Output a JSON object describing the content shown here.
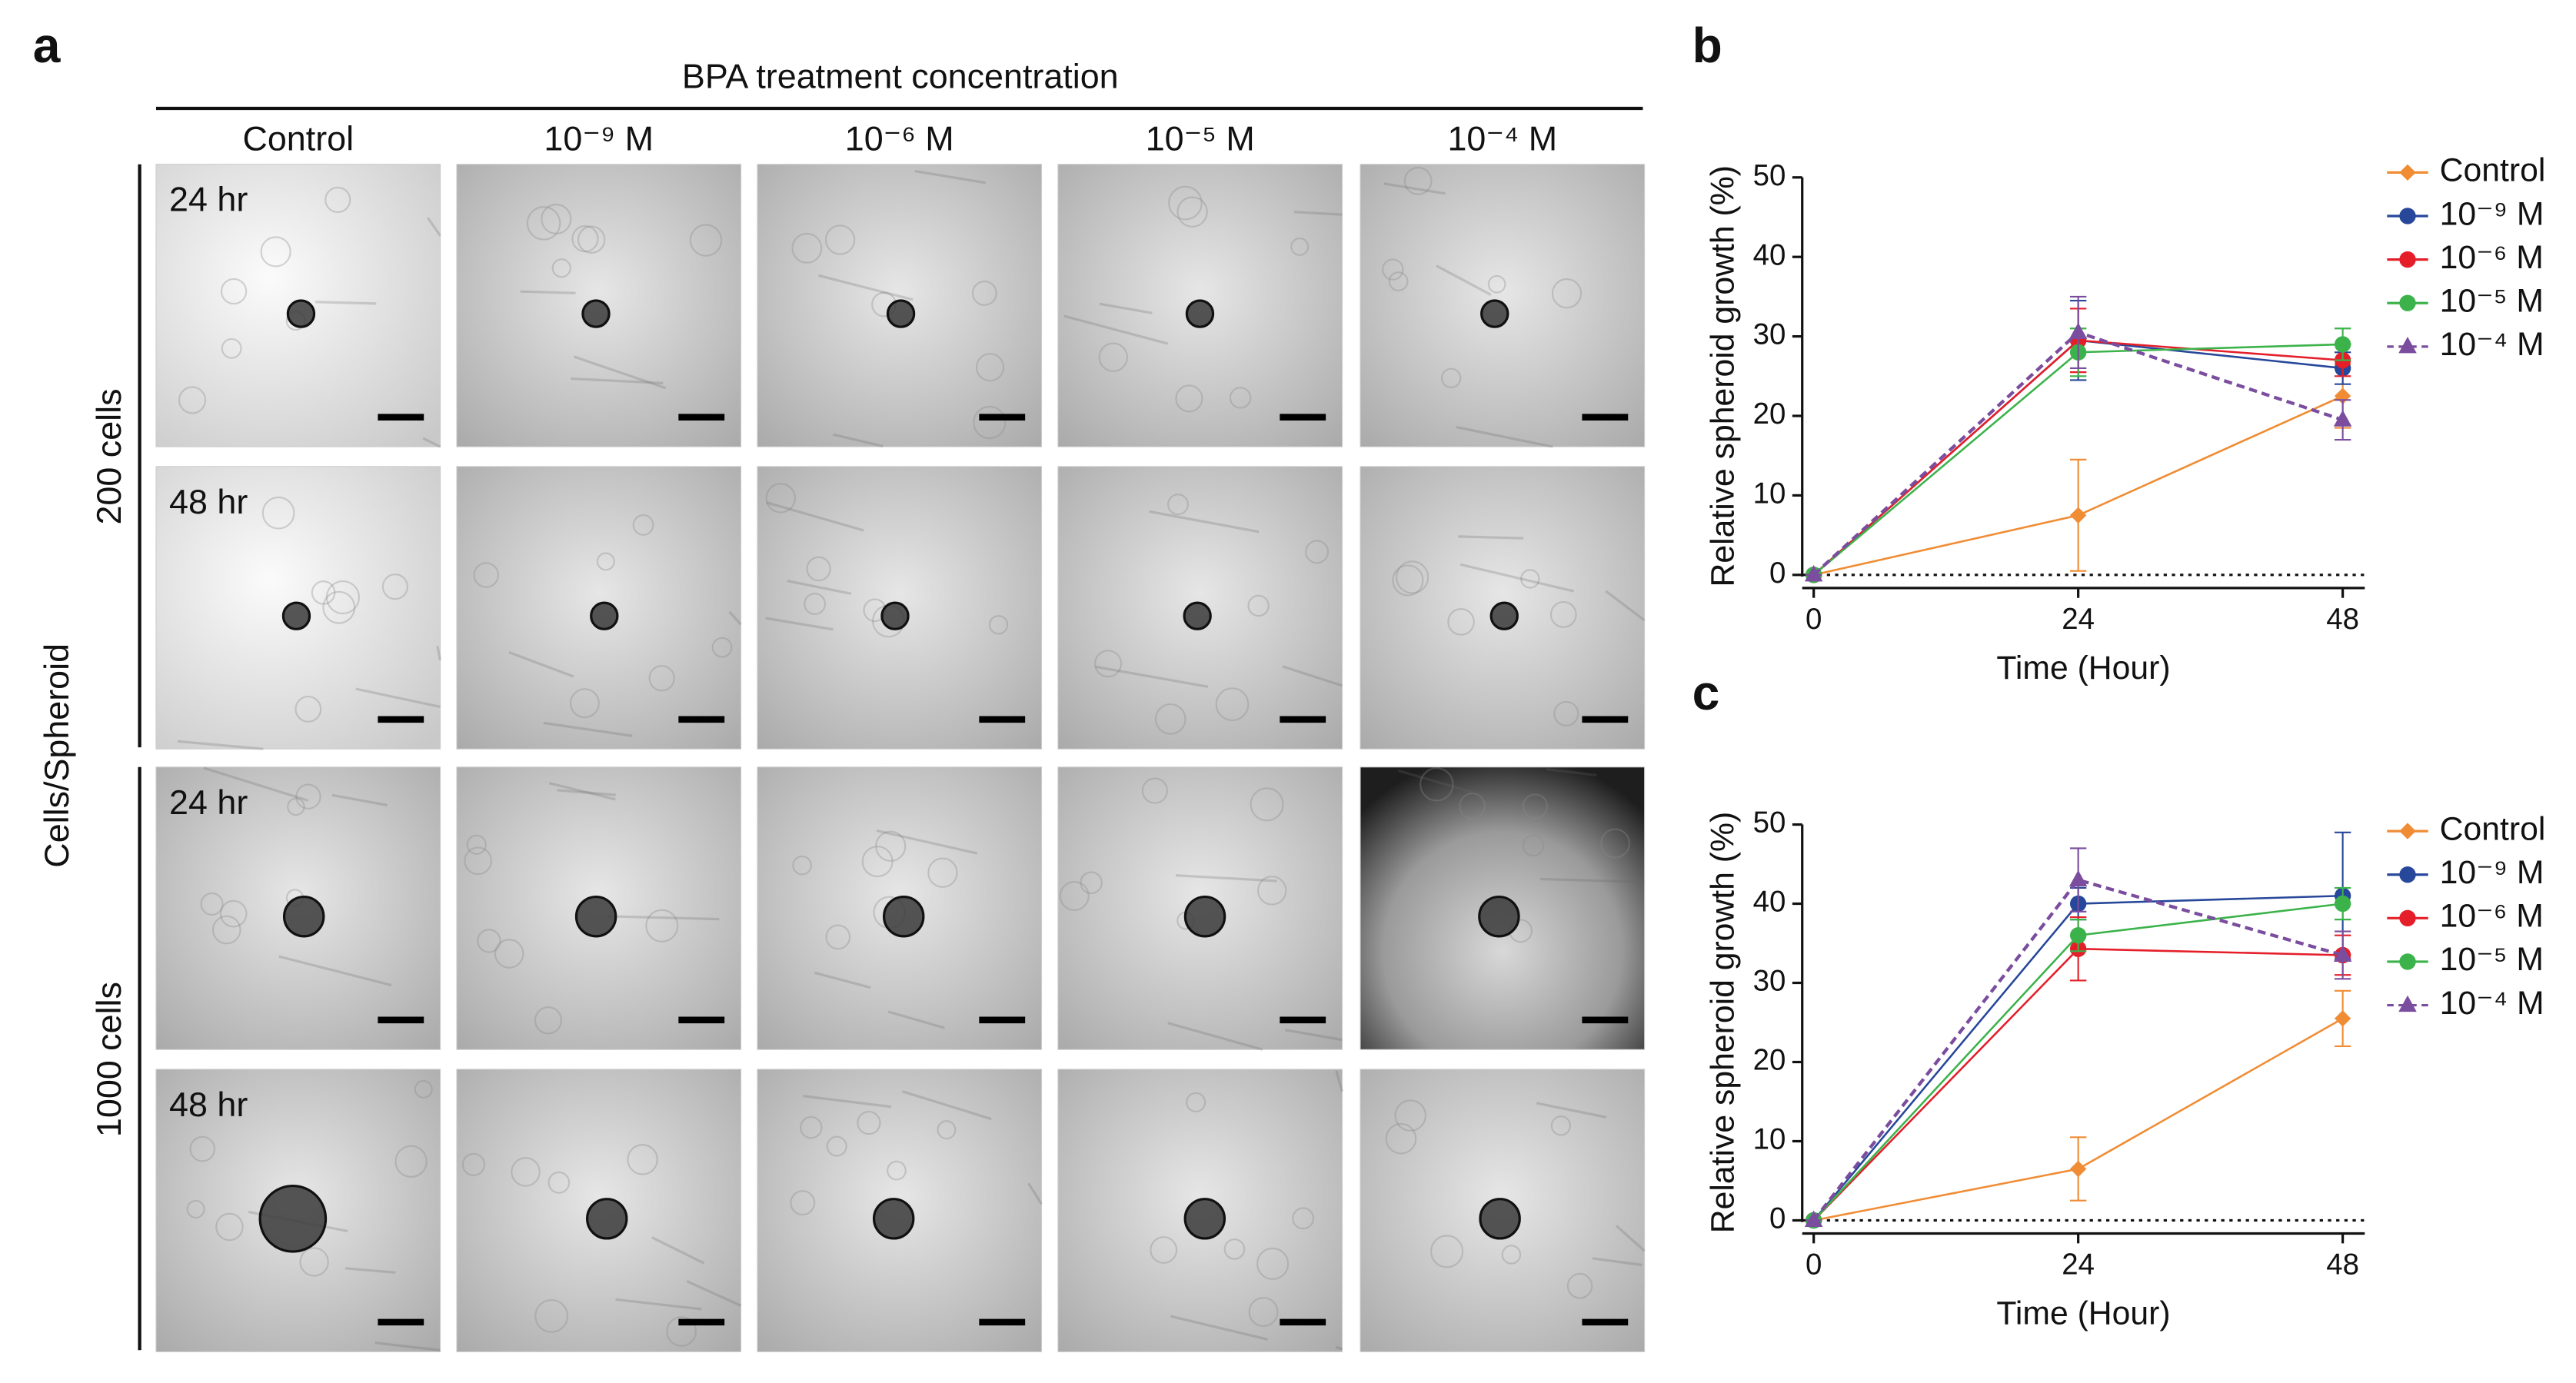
{
  "panel_a": {
    "label": "a",
    "title": "BPA treatment concentration",
    "columns": [
      "Control",
      "10⁻⁹ M",
      "10⁻⁶ M",
      "10⁻⁵ M",
      "10⁻⁴ M"
    ],
    "y_title": "Cells/Spheroid",
    "groups": [
      "200 cells",
      "1000 cells"
    ],
    "row_labels": [
      "24 hr",
      "48 hr",
      "24 hr",
      "48 hr"
    ]
  },
  "chart_data": [
    {
      "type": "line",
      "label": "b",
      "x_label": "Time (Hour)",
      "y_label": "Relative spheroid growth (%)",
      "x": [
        0,
        24,
        48
      ],
      "xlim": [
        -1,
        50
      ],
      "xticks": [
        0,
        24,
        48
      ],
      "ylim": [
        0,
        50
      ],
      "yticks": [
        0,
        10,
        20,
        30,
        40,
        50
      ],
      "series": [
        {
          "name": "Control",
          "color": "#f08c34",
          "marker": "diamond",
          "dashed": false,
          "values": [
            0,
            7.5,
            22.5
          ],
          "errors": [
            0,
            7,
            4
          ]
        },
        {
          "name": "10⁻⁹ M",
          "color": "#27479a",
          "marker": "circle",
          "dashed": false,
          "values": [
            0,
            29.5,
            26
          ],
          "errors": [
            0,
            5,
            2
          ]
        },
        {
          "name": "10⁻⁶ M",
          "color": "#e41f2a",
          "marker": "circle",
          "dashed": false,
          "values": [
            0,
            29.5,
            27
          ],
          "errors": [
            0,
            4,
            2
          ]
        },
        {
          "name": "10⁻⁵ M",
          "color": "#3cb34a",
          "marker": "circle",
          "dashed": false,
          "values": [
            0,
            28,
            29
          ],
          "errors": [
            0,
            3,
            2
          ]
        },
        {
          "name": "10⁻⁴ M",
          "color": "#7a4d9e",
          "marker": "triangle",
          "dashed": true,
          "values": [
            0,
            30.5,
            19.5
          ],
          "errors": [
            0,
            4.5,
            2.5
          ]
        }
      ]
    },
    {
      "type": "line",
      "label": "c",
      "x_label": "Time (Hour)",
      "y_label": "Relative spheroid growth (%)",
      "x": [
        0,
        24,
        48
      ],
      "xlim": [
        -1,
        50
      ],
      "xticks": [
        0,
        24,
        48
      ],
      "ylim": [
        0,
        50
      ],
      "yticks": [
        0,
        10,
        20,
        30,
        40,
        50
      ],
      "series": [
        {
          "name": "Control",
          "color": "#f08c34",
          "marker": "diamond",
          "dashed": false,
          "values": [
            0,
            6.5,
            25.5
          ],
          "errors": [
            0,
            4,
            3.5
          ]
        },
        {
          "name": "10⁻⁹ M",
          "color": "#27479a",
          "marker": "circle",
          "dashed": false,
          "values": [
            0,
            40,
            41
          ],
          "errors": [
            0,
            2,
            8
          ]
        },
        {
          "name": "10⁻⁶ M",
          "color": "#e41f2a",
          "marker": "circle",
          "dashed": false,
          "values": [
            0,
            34.3,
            33.5
          ],
          "errors": [
            0,
            4,
            2.5
          ]
        },
        {
          "name": "10⁻⁵ M",
          "color": "#3cb34a",
          "marker": "circle",
          "dashed": false,
          "values": [
            0,
            36,
            40
          ],
          "errors": [
            0,
            2,
            2
          ]
        },
        {
          "name": "10⁻⁴ M",
          "color": "#7a4d9e",
          "marker": "triangle",
          "dashed": true,
          "values": [
            0,
            43,
            33.5
          ],
          "errors": [
            0,
            4,
            3
          ]
        }
      ]
    }
  ]
}
